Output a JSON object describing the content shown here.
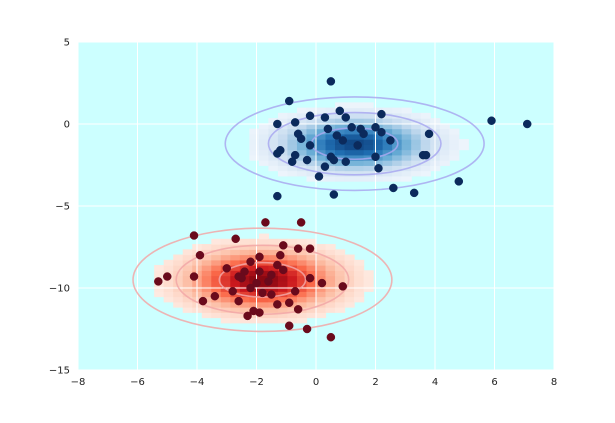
{
  "chart_data": {
    "type": "scatter",
    "title": "",
    "xlabel": "",
    "ylabel": "",
    "xlim": [
      -8,
      8
    ],
    "ylim": [
      -15,
      5
    ],
    "xticks": [
      -8,
      -6,
      -4,
      -2,
      0,
      2,
      4,
      6,
      8
    ],
    "yticks": [
      5,
      0,
      -5,
      -10,
      -15
    ],
    "grid": true,
    "legend": "none",
    "background_color": "#ccffff",
    "grid_color": "#ffffff",
    "overlays": [
      {
        "name": "",
        "kind": "gaussian-density",
        "colormap": "blues",
        "center": [
          1.3,
          -1.2
        ],
        "sigma": [
          1.45,
          0.95
        ],
        "contour_color": "#a8a8f0",
        "contour_levels_sigma": [
          1,
          2,
          3
        ]
      },
      {
        "name": "",
        "kind": "gaussian-density",
        "colormap": "reds",
        "center": [
          -1.8,
          -9.5
        ],
        "sigma": [
          1.45,
          1.05
        ],
        "contour_color": "#f2a7a7",
        "contour_levels_sigma": [
          1,
          2,
          3
        ]
      }
    ],
    "series": [
      {
        "name": "",
        "color": "#0b2a5c",
        "points": [
          [
            0.5,
            2.6
          ],
          [
            -0.9,
            1.4
          ],
          [
            0.8,
            0.8
          ],
          [
            -0.2,
            0.5
          ],
          [
            0.3,
            0.4
          ],
          [
            1.0,
            0.4
          ],
          [
            2.2,
            0.6
          ],
          [
            -1.3,
            0.0
          ],
          [
            -0.7,
            0.1
          ],
          [
            0.4,
            -0.3
          ],
          [
            1.2,
            -0.2
          ],
          [
            1.5,
            -0.3
          ],
          [
            2.0,
            -0.2
          ],
          [
            2.2,
            -0.5
          ],
          [
            3.8,
            -0.6
          ],
          [
            5.9,
            0.2
          ],
          [
            7.1,
            0.0
          ],
          [
            -0.6,
            -0.6
          ],
          [
            -0.5,
            -0.9
          ],
          [
            0.7,
            -0.7
          ],
          [
            1.6,
            -0.6
          ],
          [
            0.9,
            -1.0
          ],
          [
            2.5,
            -1.0
          ],
          [
            -1.2,
            -1.6
          ],
          [
            -0.2,
            -1.3
          ],
          [
            1.4,
            -1.3
          ],
          [
            -1.3,
            -1.8
          ],
          [
            -0.7,
            -1.9
          ],
          [
            0.5,
            -2.0
          ],
          [
            2.0,
            -2.0
          ],
          [
            3.6,
            -1.9
          ],
          [
            3.7,
            -1.9
          ],
          [
            -0.8,
            -2.3
          ],
          [
            -0.3,
            -2.2
          ],
          [
            0.6,
            -2.2
          ],
          [
            1.0,
            -2.3
          ],
          [
            2.1,
            -2.7
          ],
          [
            0.3,
            -2.6
          ],
          [
            0.1,
            -3.2
          ],
          [
            4.8,
            -3.5
          ],
          [
            2.6,
            -3.9
          ],
          [
            3.3,
            -4.2
          ],
          [
            -1.3,
            -4.4
          ],
          [
            0.6,
            -4.3
          ]
        ]
      },
      {
        "name": "",
        "color": "#6a0a1c",
        "points": [
          [
            -1.7,
            -6.0
          ],
          [
            -0.5,
            -6.0
          ],
          [
            -2.7,
            -7.0
          ],
          [
            -4.1,
            -6.8
          ],
          [
            -1.1,
            -7.4
          ],
          [
            -0.6,
            -7.6
          ],
          [
            -0.2,
            -7.6
          ],
          [
            -1.2,
            -8.0
          ],
          [
            -1.9,
            -8.1
          ],
          [
            -2.2,
            -8.4
          ],
          [
            -3.0,
            -8.8
          ],
          [
            -1.3,
            -8.6
          ],
          [
            -3.9,
            -8.0
          ],
          [
            -2.4,
            -9.0
          ],
          [
            -1.9,
            -9.0
          ],
          [
            -1.5,
            -9.2
          ],
          [
            -1.1,
            -8.9
          ],
          [
            -2.6,
            -9.3
          ],
          [
            -1.6,
            -9.6
          ],
          [
            -2.0,
            -9.7
          ],
          [
            -2.5,
            -9.4
          ],
          [
            -4.1,
            -9.3
          ],
          [
            -5.0,
            -9.3
          ],
          [
            -5.3,
            -9.6
          ],
          [
            -0.2,
            -9.4
          ],
          [
            0.2,
            -9.7
          ],
          [
            0.9,
            -9.9
          ],
          [
            -2.2,
            -10.0
          ],
          [
            -2.8,
            -10.2
          ],
          [
            -1.8,
            -10.3
          ],
          [
            -1.5,
            -10.4
          ],
          [
            -0.7,
            -10.2
          ],
          [
            -3.4,
            -10.5
          ],
          [
            -2.6,
            -10.8
          ],
          [
            -3.8,
            -10.8
          ],
          [
            -0.9,
            -10.9
          ],
          [
            -1.3,
            -11.0
          ],
          [
            -0.6,
            -11.3
          ],
          [
            -2.1,
            -11.4
          ],
          [
            -2.3,
            -11.7
          ],
          [
            -1.9,
            -11.5
          ],
          [
            -0.9,
            -12.3
          ],
          [
            -0.3,
            -12.5
          ],
          [
            0.5,
            -13.0
          ]
        ]
      }
    ]
  }
}
